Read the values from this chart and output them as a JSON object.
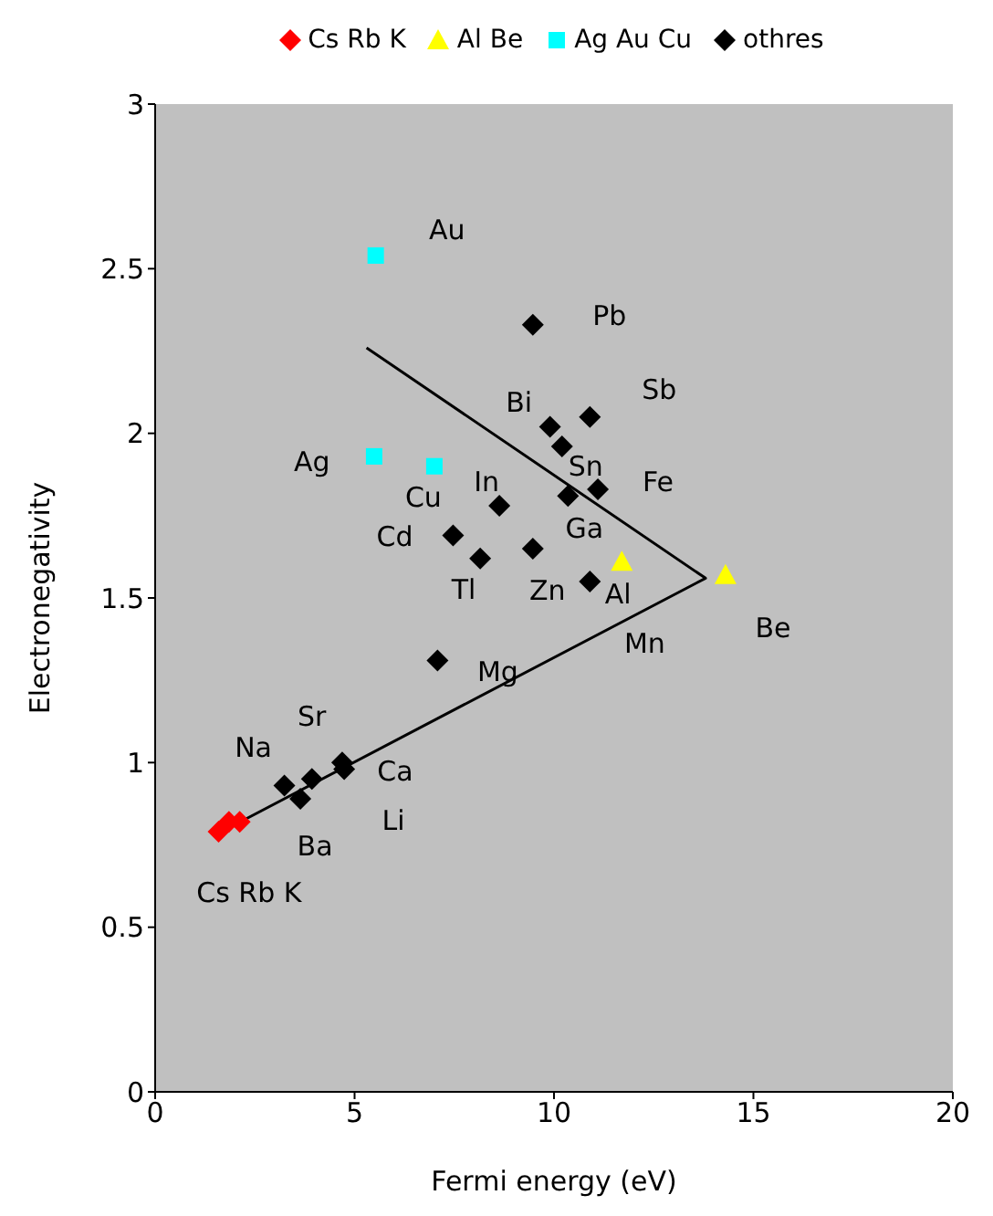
{
  "chart_data": {
    "type": "scatter",
    "xlabel": "Fermi energy (eV)",
    "ylabel": "Electronegativity",
    "xlim": [
      0,
      20
    ],
    "xticks": [
      0,
      5,
      10,
      15,
      20
    ],
    "ylim": [
      0,
      3
    ],
    "yticks": [
      0,
      0.5,
      1,
      1.5,
      2,
      2.5,
      3
    ],
    "legend": "top",
    "series": [
      {
        "name": "Cs Rb K",
        "color": "#ff0000",
        "marker": "diamond",
        "x": [
          1.59,
          1.85,
          2.12
        ],
        "values": [
          0.79,
          0.82,
          0.82
        ]
      },
      {
        "name": "Al Be",
        "color": "#ffff00",
        "marker": "triangle",
        "x": [
          11.7,
          14.3
        ],
        "values": [
          1.61,
          1.57
        ]
      },
      {
        "name": "Ag Au Cu",
        "color": "#00ffff",
        "marker": "square",
        "x": [
          5.49,
          5.53,
          7.0
        ],
        "values": [
          1.93,
          2.54,
          1.9
        ]
      },
      {
        "name": "othres",
        "color": "#000000",
        "marker": "diamond",
        "x": [
          3.24,
          4.74,
          4.69,
          3.93,
          3.64,
          7.08,
          9.47,
          7.47,
          8.63,
          8.15,
          10.35,
          10.2,
          9.47,
          9.9,
          10.9,
          11.1,
          10.9
        ],
        "values": [
          0.93,
          0.98,
          1.0,
          0.95,
          0.89,
          1.31,
          1.65,
          1.69,
          1.78,
          1.62,
          1.81,
          1.96,
          2.33,
          2.02,
          2.05,
          1.83,
          1.55
        ]
      },
      {
        "type": "line",
        "color": "#000000",
        "marker": "none",
        "x": [
          1.66,
          13.8,
          5.3
        ],
        "values": [
          0.79,
          1.56,
          2.26
        ]
      }
    ],
    "annotations": [
      {
        "text": "Au",
        "x": 5.53,
        "y": 2.54
      },
      {
        "text": "Pb",
        "x": 9.47,
        "y": 2.33
      },
      {
        "text": "Sb",
        "x": 10.9,
        "y": 2.05
      },
      {
        "text": "Bi",
        "x": 9.9,
        "y": 2.02
      },
      {
        "text": "Sn",
        "x": 10.2,
        "y": 1.96
      },
      {
        "text": "Fe",
        "x": 11.1,
        "y": 1.83
      },
      {
        "text": "Ga",
        "x": 10.35,
        "y": 1.81
      },
      {
        "text": "In",
        "x": 8.63,
        "y": 1.78
      },
      {
        "text": "Cu",
        "x": 7.0,
        "y": 1.9
      },
      {
        "text": "Ag",
        "x": 5.49,
        "y": 1.93
      },
      {
        "text": "Cd",
        "x": 7.47,
        "y": 1.69
      },
      {
        "text": "Tl",
        "x": 8.15,
        "y": 1.62
      },
      {
        "text": "Zn",
        "x": 9.47,
        "y": 1.65
      },
      {
        "text": "Al",
        "x": 11.7,
        "y": 1.61
      },
      {
        "text": "Mn",
        "x": 10.9,
        "y": 1.55
      },
      {
        "text": "Be",
        "x": 14.3,
        "y": 1.57
      },
      {
        "text": "Mg",
        "x": 7.08,
        "y": 1.31
      },
      {
        "text": "Sr",
        "x": 3.93,
        "y": 0.95
      },
      {
        "text": "Na",
        "x": 3.24,
        "y": 0.93
      },
      {
        "text": "Ca",
        "x": 4.69,
        "y": 1.0
      },
      {
        "text": "Li",
        "x": 4.74,
        "y": 0.98
      },
      {
        "text": "Ba",
        "x": 3.64,
        "y": 0.89
      },
      {
        "text": "Cs Rb K",
        "x": 1.85,
        "y": 0.82
      }
    ]
  }
}
